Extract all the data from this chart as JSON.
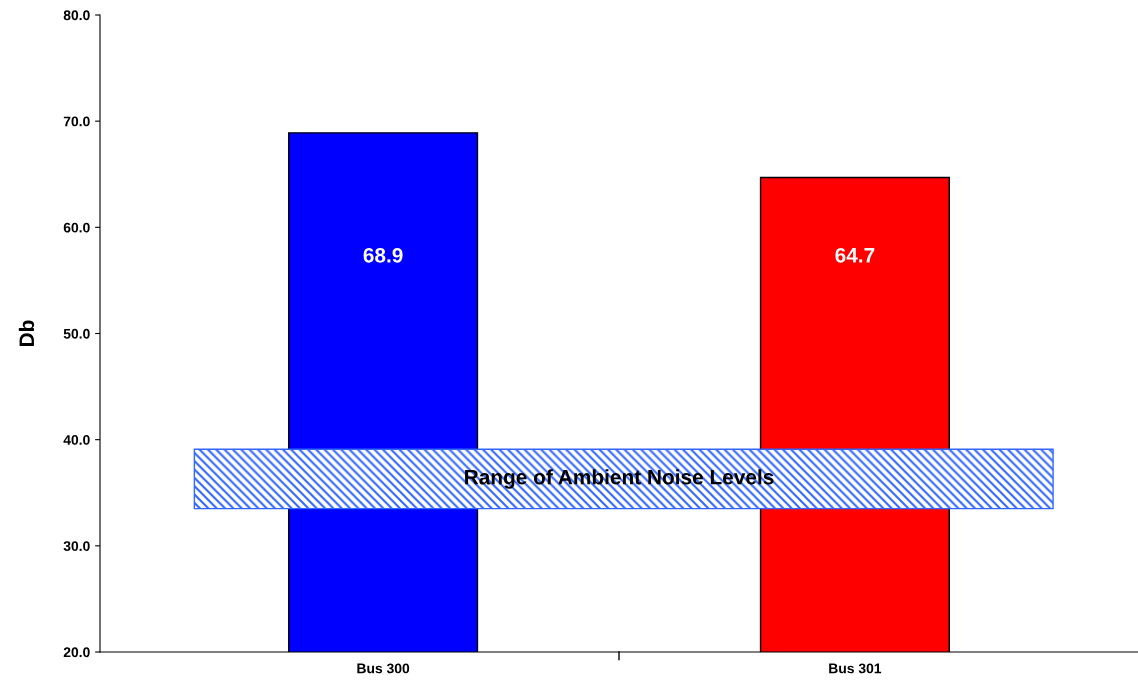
{
  "chart_data": {
    "type": "bar",
    "ylabel": "Db",
    "categories": [
      "Bus 300",
      "Bus 301"
    ],
    "values": [
      68.9,
      64.7
    ],
    "colors": [
      "#0000ff",
      "#ff0000"
    ],
    "ylim": [
      20,
      80
    ],
    "yticks": [
      {
        "value": 20,
        "label": "20.0"
      },
      {
        "value": 30,
        "label": "30.0"
      },
      {
        "value": 40,
        "label": "40.0"
      },
      {
        "value": 50,
        "label": "50.0"
      },
      {
        "value": 60,
        "label": "60.0"
      },
      {
        "value": 70,
        "label": "70.0"
      },
      {
        "value": 80,
        "label": "80.0"
      }
    ],
    "bands": [
      {
        "axis": "y",
        "from": 33.5,
        "to": 39.1,
        "label": "Range of Ambient Noise Levels",
        "color": "#3366ff"
      }
    ],
    "data_labels": true,
    "grid": false,
    "legend": false
  }
}
